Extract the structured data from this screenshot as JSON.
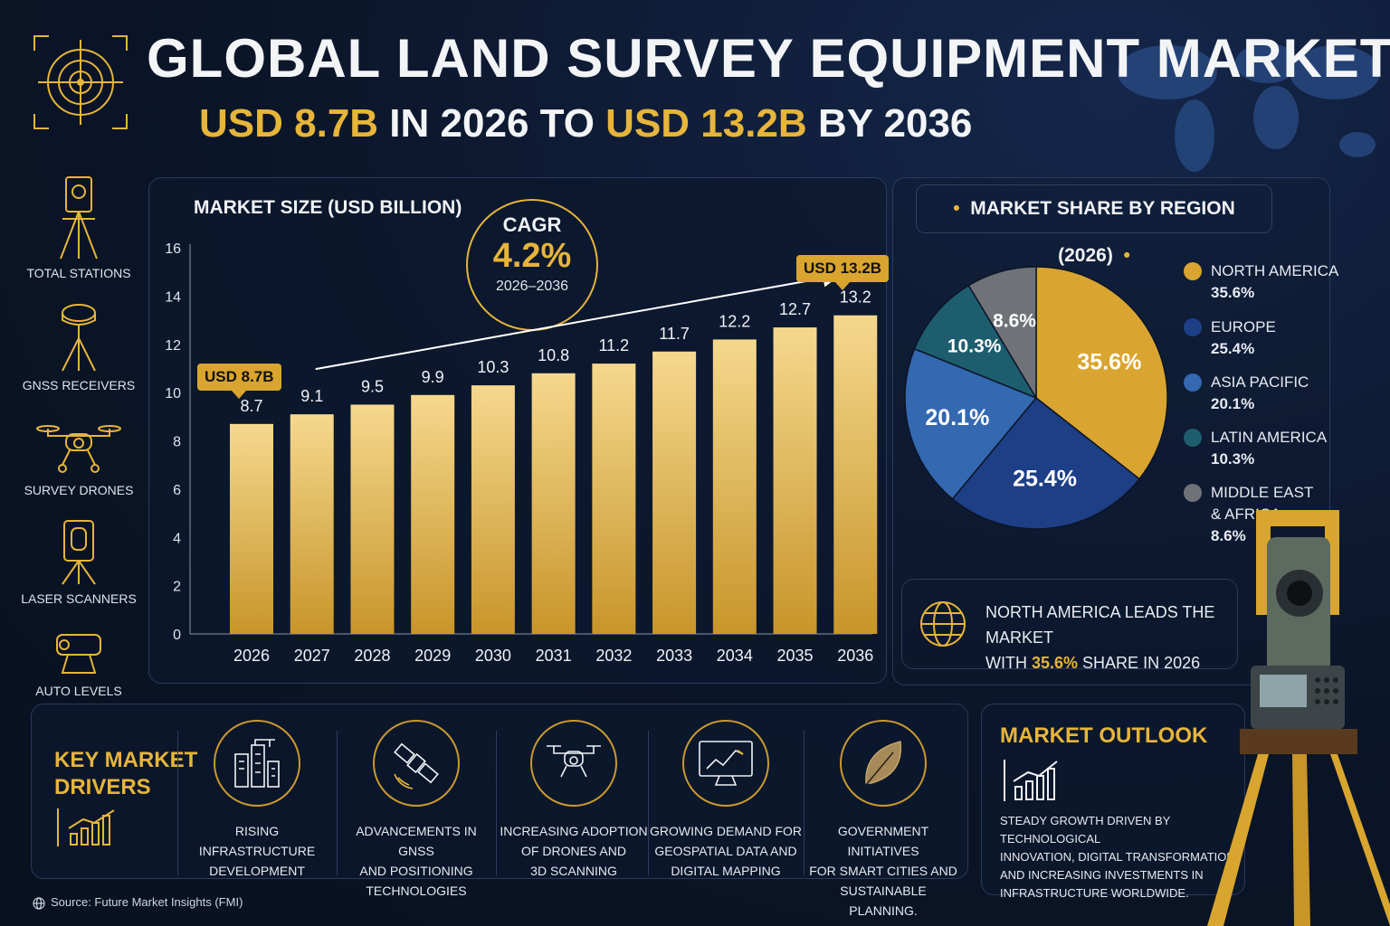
{
  "header": {
    "title": "GLOBAL LAND SURVEY EQUIPMENT MARKET",
    "subtitle_parts": [
      "USD 8.7B",
      " IN 2026 TO ",
      "USD 13.2B",
      " BY 2036"
    ]
  },
  "sidebar": {
    "items": [
      {
        "label": "TOTAL STATIONS",
        "icon": "total-station-icon"
      },
      {
        "label": "GNSS RECEIVERS",
        "icon": "gnss-receiver-icon"
      },
      {
        "label": "SURVEY DRONES",
        "icon": "drone-icon"
      },
      {
        "label": "LASER SCANNERS",
        "icon": "laser-scanner-icon"
      },
      {
        "label": "AUTO LEVELS",
        "icon": "auto-level-icon"
      }
    ]
  },
  "cagr": {
    "label": "CAGR",
    "value": "4.2%",
    "period": "2026–2036"
  },
  "callouts": {
    "start": "USD 8.7B",
    "end": "USD 13.2B"
  },
  "pie_panel": {
    "title": "MARKET SHARE BY REGION (2026)"
  },
  "leader": {
    "line1": "NORTH AMERICA LEADS THE MARKET",
    "line2_pre": "WITH ",
    "line2_hl": "35.6%",
    "line2_post": " SHARE IN 2026"
  },
  "drivers": {
    "title_line1": "KEY MARKET",
    "title_line2": "DRIVERS",
    "items": [
      {
        "lines": [
          "RISING INFRASTRUCTURE",
          "DEVELOPMENT"
        ],
        "icon": "buildings-icon"
      },
      {
        "lines": [
          "ADVANCEMENTS IN GNSS",
          "AND POSITIONING",
          "TECHNOLOGIES"
        ],
        "icon": "satellite-icon"
      },
      {
        "lines": [
          "INCREASING ADOPTION",
          "OF DRONES AND",
          "3D SCANNING"
        ],
        "icon": "drone-icon"
      },
      {
        "lines": [
          "GROWING DEMAND FOR",
          "GEOSPATIAL DATA AND",
          "DIGITAL MAPPING"
        ],
        "icon": "monitor-chart-icon"
      },
      {
        "lines": [
          "GOVERNMENT INITIATIVES",
          "FOR SMART CITIES AND",
          "SUSTAINABLE PLANNING."
        ],
        "icon": "leaf-icon"
      }
    ]
  },
  "outlook": {
    "title": "MARKET OUTLOOK",
    "lines": [
      "STEADY GROWTH DRIVEN BY TECHNOLOGICAL",
      "INNOVATION, DIGITAL TRANSFORMATION,",
      "AND INCREASING INVESTMENTS IN",
      "INFRASTRUCTURE WORLDWIDE."
    ]
  },
  "source": "Source: Future Market Insights (FMI)",
  "colors": {
    "gold": "#e6b53a",
    "north_america": "#d9a530",
    "europe": "#1d3f86",
    "asia_pacific": "#3468b0",
    "latin_america": "#1d5d6e",
    "mea": "#6f7378"
  },
  "chart_data": [
    {
      "type": "bar",
      "title": "MARKET SIZE (USD BILLION)",
      "categories": [
        "2026",
        "2027",
        "2028",
        "2029",
        "2030",
        "2031",
        "2032",
        "2033",
        "2034",
        "2035",
        "2036"
      ],
      "values": [
        8.7,
        9.1,
        9.5,
        9.9,
        10.3,
        10.8,
        11.2,
        11.7,
        12.2,
        12.7,
        13.2
      ],
      "value_labels": [
        "8.7",
        "9.1",
        "9.5",
        "9.9",
        "10.3",
        "10.8",
        "11.2",
        "11.7",
        "12.2",
        "12.7",
        "13.2"
      ],
      "ylim": [
        0,
        16
      ],
      "yticks": [
        "0",
        "2",
        "4",
        "6",
        "8",
        "10",
        "12",
        "14",
        "16"
      ],
      "grid": false
    },
    {
      "type": "pie",
      "title": "MARKET SHARE BY REGION (2026)",
      "slices": [
        {
          "name": "NORTH AMERICA",
          "value": 35.6,
          "label": "35.6%",
          "legend_lines": [
            "NORTH AMERICA"
          ],
          "color": "#d9a530"
        },
        {
          "name": "EUROPE",
          "value": 25.4,
          "label": "25.4%",
          "legend_lines": [
            "EUROPE"
          ],
          "color": "#1d3f86"
        },
        {
          "name": "ASIA PACIFIC",
          "value": 20.1,
          "label": "20.1%",
          "legend_lines": [
            "ASIA PACIFIC"
          ],
          "color": "#3468b0"
        },
        {
          "name": "LATIN AMERICA",
          "value": 10.3,
          "label": "10.3%",
          "legend_lines": [
            "LATIN AMERICA"
          ],
          "color": "#1d5d6e"
        },
        {
          "name": "MIDDLE EAST & AFRICA",
          "value": 8.6,
          "label": "8.6%",
          "legend_lines": [
            "MIDDLE EAST",
            "& AFRICA"
          ],
          "color": "#6f7378"
        }
      ],
      "legend_placement": "right"
    }
  ]
}
